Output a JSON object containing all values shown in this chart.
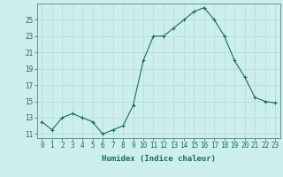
{
  "x": [
    0,
    1,
    2,
    3,
    4,
    5,
    6,
    7,
    8,
    9,
    10,
    11,
    12,
    13,
    14,
    15,
    16,
    17,
    18,
    19,
    20,
    21,
    22,
    23
  ],
  "y": [
    12.5,
    11.5,
    13,
    13.5,
    13,
    12.5,
    11,
    11.5,
    12,
    14.5,
    20,
    23,
    23,
    24,
    25,
    26,
    26.5,
    25,
    23,
    20,
    18,
    15.5,
    15,
    14.8
  ],
  "line_color": "#1a6b5e",
  "marker": "+",
  "marker_size": 3,
  "bg_color": "#cceeed",
  "grid_color": "#aad8d4",
  "xlabel": "Humidex (Indice chaleur)",
  "ylim": [
    10.5,
    27
  ],
  "xlim": [
    -0.5,
    23.5
  ],
  "yticks": [
    11,
    13,
    15,
    17,
    19,
    21,
    23,
    25
  ],
  "xtick_labels": [
    "0",
    "1",
    "2",
    "3",
    "4",
    "5",
    "6",
    "7",
    "8",
    "9",
    "10",
    "11",
    "12",
    "13",
    "14",
    "15",
    "16",
    "17",
    "18",
    "19",
    "20",
    "21",
    "22",
    "23"
  ],
  "tick_color": "#1a6b5e",
  "font_size_label": 6.5,
  "font_size_tick": 5.5,
  "lw": 0.8,
  "marker_lw": 0.8
}
